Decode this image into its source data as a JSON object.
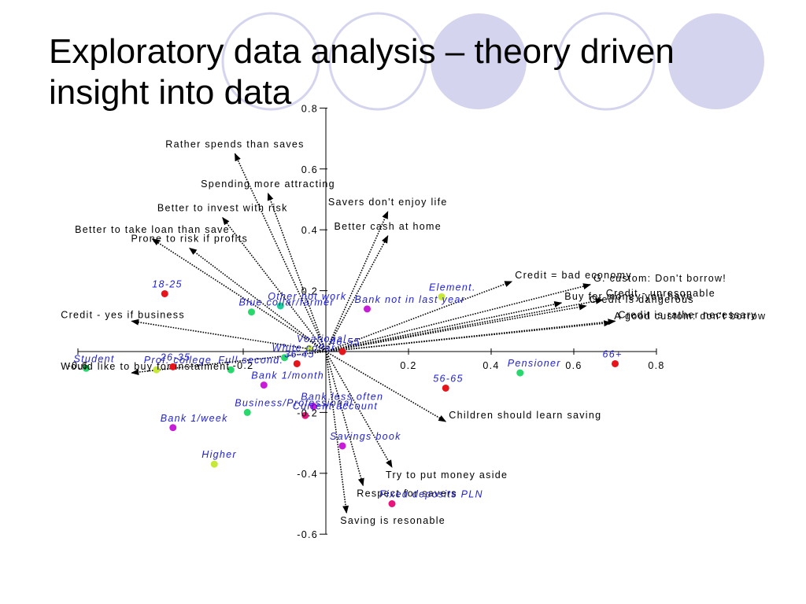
{
  "slide": {
    "title": "Exploratory data analysis – theory driven\ninsight into data",
    "decoration_color": "#d4d4ee"
  },
  "chart_data": {
    "type": "scatter",
    "title": "",
    "xlabel": "",
    "ylabel": "",
    "xlim": [
      -0.6,
      0.8
    ],
    "ylim": [
      -0.6,
      0.8
    ],
    "grid": false,
    "x_ticks": [
      {
        "value": -0.6,
        "label": "-0.6"
      },
      {
        "value": -0.2,
        "label": "-0.2"
      },
      {
        "value": 0.2,
        "label": "0.2"
      },
      {
        "value": 0.4,
        "label": "0.4"
      },
      {
        "value": 0.6,
        "label": "0.6"
      },
      {
        "value": 0.8,
        "label": "0.8"
      }
    ],
    "y_ticks": [
      {
        "value": 0.8,
        "label": "0.8"
      },
      {
        "value": 0.6,
        "label": "0.6"
      },
      {
        "value": 0.4,
        "label": "0.4"
      },
      {
        "value": 0.2,
        "label": "0.2"
      },
      {
        "value": -0.2,
        "label": "-0.2"
      },
      {
        "value": -0.4,
        "label": "-0.4"
      },
      {
        "value": -0.6,
        "label": "-0.6"
      }
    ],
    "vectors": [
      {
        "label": "Rather spends than saves",
        "x": -0.22,
        "y": 0.65
      },
      {
        "label": "Spending more attracting",
        "x": -0.14,
        "y": 0.52
      },
      {
        "label": "Savers don't enjoy life",
        "x": 0.15,
        "y": 0.46
      },
      {
        "label": "Better to invest with risk",
        "x": -0.25,
        "y": 0.44
      },
      {
        "label": "Better cash at home",
        "x": 0.15,
        "y": 0.38
      },
      {
        "label": "Better to take loan than save",
        "x": -0.42,
        "y": 0.37
      },
      {
        "label": "Prone to risk if profits",
        "x": -0.33,
        "y": 0.34
      },
      {
        "label": "Credit = bad economy",
        "x": 0.45,
        "y": 0.23
      },
      {
        "label": "G. custom: Don't borrow!",
        "x": 0.64,
        "y": 0.22
      },
      {
        "label": "Buy for money you have",
        "x": 0.57,
        "y": 0.16
      },
      {
        "label": "Credit - unresonable",
        "x": 0.67,
        "y": 0.17
      },
      {
        "label": "Credit is dangerous",
        "x": 0.63,
        "y": 0.15
      },
      {
        "label": "Credit is rather necessary",
        "x": 0.7,
        "y": 0.1
      },
      {
        "label": "A good custom: don't borrow",
        "x": 0.69,
        "y": 0.095
      },
      {
        "label": "Credit - yes if business",
        "x": -0.47,
        "y": 0.1
      },
      {
        "label": "Would like to buy for instalment",
        "x": -0.47,
        "y": -0.07
      },
      {
        "label": "Children should learn saving",
        "x": 0.29,
        "y": -0.23
      },
      {
        "label": "Try to put money aside",
        "x": 0.16,
        "y": -0.38
      },
      {
        "label": "Respect for savers",
        "x": 0.09,
        "y": -0.44
      },
      {
        "label": "Saving is resonable",
        "x": 0.05,
        "y": -0.53
      }
    ],
    "categories": [
      {
        "label": "18-25",
        "x": -0.39,
        "y": 0.19,
        "color": "#e8141c"
      },
      {
        "label": "Element.",
        "x": 0.28,
        "y": 0.18,
        "color": "#c8e838"
      },
      {
        "label": "Other not work",
        "x": -0.11,
        "y": 0.15,
        "color": "#1ccf9c"
      },
      {
        "label": "Bank not in last year",
        "x": 0.1,
        "y": 0.14,
        "color": "#c81cd8"
      },
      {
        "label": "Blue collar/farmer",
        "x": -0.18,
        "y": 0.13,
        "color": "#28d86c"
      },
      {
        "label": "Voational",
        "x": -0.04,
        "y": 0.01,
        "color": "#c8e838"
      },
      {
        "label": "White collar",
        "x": -0.1,
        "y": -0.02,
        "color": "#28d86c"
      },
      {
        "label": "46-55",
        "x": 0.04,
        "y": 0.0,
        "color": "#e8141c"
      },
      {
        "label": "36-45",
        "x": -0.07,
        "y": -0.04,
        "color": "#e8141c"
      },
      {
        "label": "26-35",
        "x": -0.37,
        "y": -0.05,
        "color": "#e8141c"
      },
      {
        "label": "Student",
        "x": -0.58,
        "y": -0.055,
        "color": "#28d86c"
      },
      {
        "label": "Prof. college",
        "x": -0.41,
        "y": -0.06,
        "color": "#c8e838"
      },
      {
        "label": "Full second.",
        "x": -0.23,
        "y": -0.06,
        "color": "#28d86c"
      },
      {
        "label": "Pensioner",
        "x": 0.47,
        "y": -0.07,
        "color": "#28d86c"
      },
      {
        "label": "66+",
        "x": 0.7,
        "y": -0.04,
        "color": "#e8141c"
      },
      {
        "label": "Bank 1/month",
        "x": -0.15,
        "y": -0.11,
        "color": "#c81cd8"
      },
      {
        "label": "56-65",
        "x": 0.29,
        "y": -0.12,
        "color": "#e8141c"
      },
      {
        "label": "Bank less often",
        "x": -0.03,
        "y": -0.18,
        "color": "#c81cd8"
      },
      {
        "label": "Current account",
        "x": -0.05,
        "y": -0.21,
        "color": "#e8147c"
      },
      {
        "label": "Business/Professional",
        "x": -0.19,
        "y": -0.2,
        "color": "#28d86c"
      },
      {
        "label": "Bank 1/week",
        "x": -0.37,
        "y": -0.25,
        "color": "#c81cd8"
      },
      {
        "label": "Savings book",
        "x": 0.04,
        "y": -0.31,
        "color": "#c81cd8"
      },
      {
        "label": "Higher",
        "x": -0.27,
        "y": -0.37,
        "color": "#c8e838"
      },
      {
        "label": "Fixed deposits PLN",
        "x": 0.16,
        "y": -0.5,
        "color": "#e8147c"
      }
    ]
  }
}
